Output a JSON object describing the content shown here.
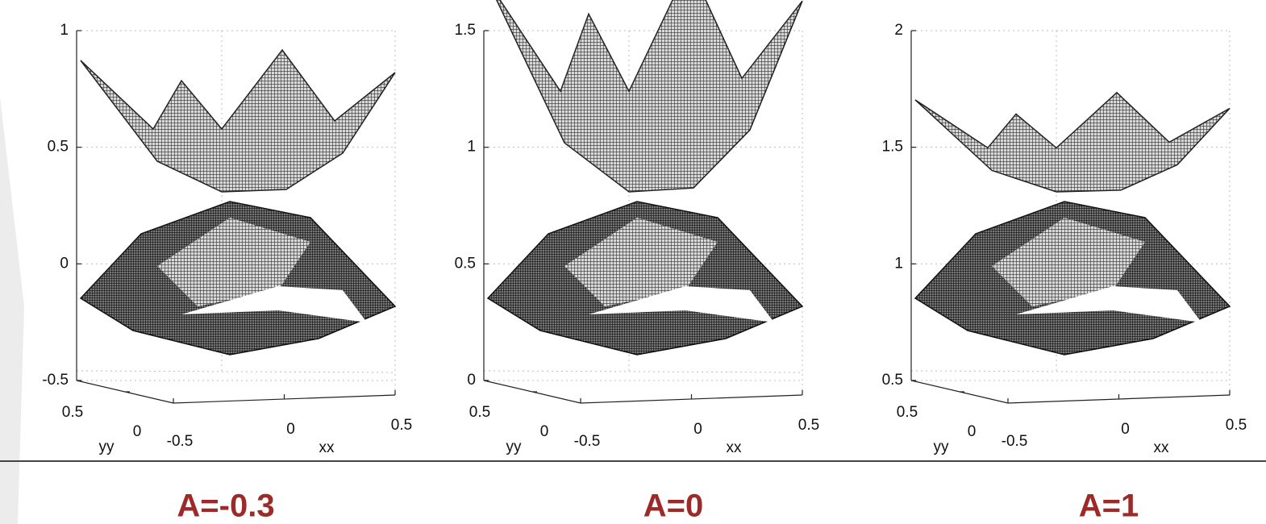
{
  "chart_data": [
    {
      "type": "surface",
      "caption": "A=-0.3",
      "zlim": [
        -0.5,
        1
      ],
      "zticks": [
        -0.5,
        0,
        0.5,
        1
      ],
      "xlim": [
        -0.5,
        0.5
      ],
      "xticks": [
        -0.5,
        0,
        0.5
      ],
      "xlabel": "xx",
      "ylim": [
        -0.5,
        0.5
      ],
      "yticks": [
        0.5,
        0
      ],
      "ylabel": "yy",
      "grid": true
    },
    {
      "type": "surface",
      "caption": "A=0",
      "zlim": [
        0,
        1.5
      ],
      "zticks": [
        0,
        0.5,
        1,
        1.5
      ],
      "xlim": [
        -0.5,
        0.5
      ],
      "xticks": [
        -0.5,
        0,
        0.5
      ],
      "xlabel": "xx",
      "ylim": [
        -0.5,
        0.5
      ],
      "yticks": [
        0.5,
        0
      ],
      "ylabel": "yy",
      "grid": true
    },
    {
      "type": "surface",
      "caption": "A=1",
      "zlim": [
        0.5,
        2
      ],
      "zticks": [
        0.5,
        1,
        1.5,
        2
      ],
      "xlim": [
        -0.5,
        0.5
      ],
      "xticks": [
        -0.5,
        0,
        0.5
      ],
      "xlabel": "xx",
      "ylim": [
        -0.5,
        0.5
      ],
      "yticks": [
        0.5,
        0
      ],
      "ylabel": "yy",
      "grid": true
    }
  ]
}
